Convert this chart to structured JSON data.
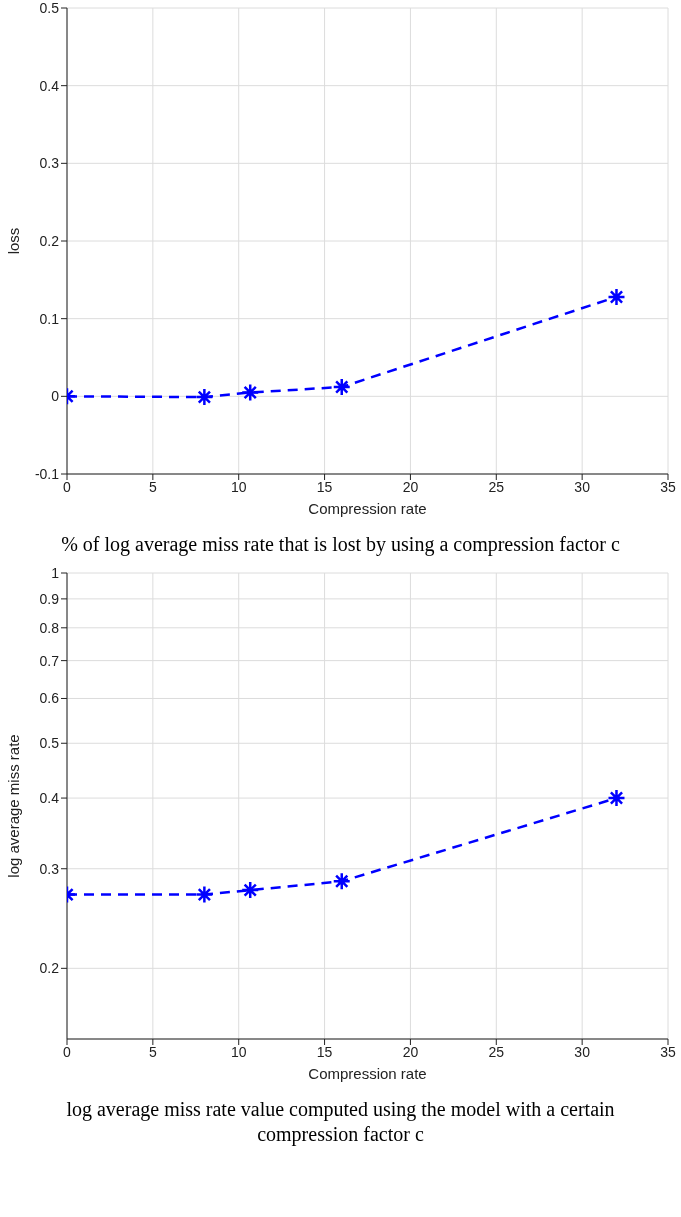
{
  "chart_data": [
    {
      "type": "line",
      "xlabel": "Compression rate",
      "ylabel": "loss",
      "annotations": [
        "% of log average miss rate that is lost by using a compression factor c"
      ],
      "x": [
        0,
        8,
        10.67,
        16,
        32
      ],
      "series": [
        {
          "color": "#0000ff",
          "values": [
            0,
            -0.001,
            0.005,
            0.012,
            0.128
          ]
        }
      ],
      "xlim": [
        0,
        35
      ],
      "xticks": [
        0,
        5,
        10,
        15,
        20,
        25,
        30,
        35
      ],
      "ylim": [
        -0.1,
        0.5
      ],
      "yticks": [
        -0.1,
        0,
        0.1,
        0.2,
        0.3,
        0.4,
        0.5
      ],
      "grid": true,
      "marker": "cross",
      "line_style": "dashed"
    },
    {
      "type": "line",
      "xlabel": "Compression rate",
      "ylabel": "log average miss rate",
      "annotations": [
        "log average miss rate value computed using the model with a certain compression factor c"
      ],
      "x": [
        0,
        8,
        10.67,
        16,
        32
      ],
      "series": [
        {
          "color": "#0000ff",
          "values": [
            0.27,
            0.27,
            0.275,
            0.285,
            0.4
          ]
        }
      ],
      "xlim": [
        0,
        35
      ],
      "xticks": [
        0,
        5,
        10,
        15,
        20,
        25,
        30,
        35
      ],
      "ylim": [
        0.15,
        1
      ],
      "yticks": [
        0.2,
        0.3,
        0.4,
        0.5,
        0.6,
        0.7,
        0.8,
        0.9,
        1
      ],
      "log": true,
      "grid": true,
      "marker": "cross",
      "line_style": "dashed"
    }
  ]
}
